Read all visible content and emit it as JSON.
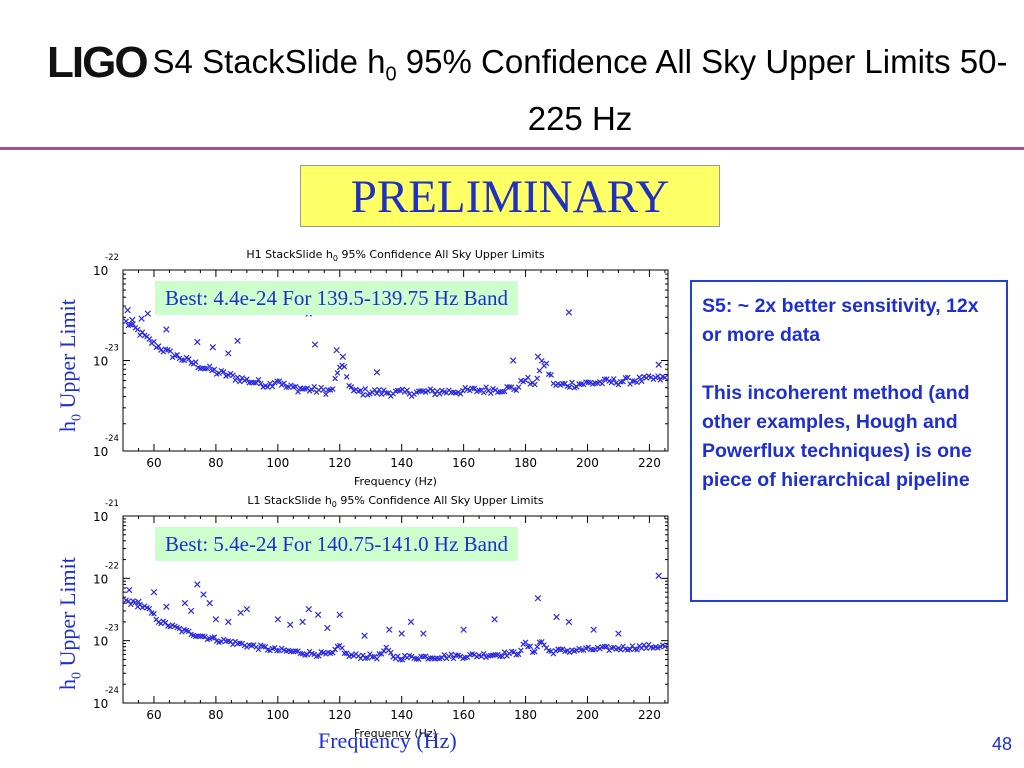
{
  "slide": {
    "logo": "LIGO",
    "title_main": "S4 StackSlide h",
    "title_sub": "0",
    "title_rest": " 95% Confidence All Sky Upper Limits 50-225 Hz",
    "preliminary": "PRELIMINARY",
    "freq_label": "Frequency (Hz)",
    "page_number": "48",
    "colors": {
      "accent": "#1e2fd0",
      "rule": "#a0509c",
      "prelim_bg": "#ffff66",
      "best_bg": "#ccffcc",
      "marker": "#2a2ae0"
    }
  },
  "ylabel": {
    "main": "h",
    "sub": "0",
    "rest": " Upper Limit"
  },
  "note": {
    "p1": "S5: ~ 2x better sensitivity, 12x or more data",
    "p2": "This incoherent method (and other examples, Hough and Powerflux techniques) is one piece of hierarchical pipeline"
  },
  "chart_data": [
    {
      "type": "scatter",
      "title_pre": "H1 StackSlide h",
      "title_sub": "0",
      "title_post": " 95% Confidence All Sky Upper Limits",
      "xlabel": "Frequency (Hz)",
      "ylabel": "h0 Upper Limit",
      "y_scale": "log",
      "xlim": [
        50,
        226
      ],
      "ylim_exp": [
        -24,
        -22
      ],
      "x_ticks": [
        60,
        80,
        100,
        120,
        140,
        160,
        180,
        200,
        220
      ],
      "y_ticks": [
        {
          "base": "10",
          "exp": "-24"
        },
        {
          "base": "10",
          "exp": "-23"
        },
        {
          "base": "10",
          "exp": "-22"
        }
      ],
      "annotation": "Best: 4.4e-24 For 139.5-139.75 Hz Band",
      "baseline": [
        [
          50,
          2.8e-23
        ],
        [
          55,
          2.1e-23
        ],
        [
          58,
          1.7e-23
        ],
        [
          64,
          1.25e-23
        ],
        [
          72,
          9.5e-24
        ],
        [
          80,
          7.5e-24
        ],
        [
          90,
          6e-24
        ],
        [
          100,
          5.2e-24
        ],
        [
          110,
          4.8e-24
        ],
        [
          120,
          4.5e-24
        ],
        [
          130,
          4.5e-24
        ],
        [
          140,
          4.4e-24
        ],
        [
          150,
          4.5e-24
        ],
        [
          160,
          4.6e-24
        ],
        [
          170,
          4.8e-24
        ],
        [
          180,
          5e-24
        ],
        [
          190,
          5.3e-24
        ],
        [
          200,
          5.6e-24
        ],
        [
          210,
          5.9e-24
        ],
        [
          220,
          6.2e-24
        ],
        [
          226,
          6.4e-24
        ]
      ],
      "bumps": [
        [
          100,
          1.2
        ],
        [
          120,
          1.8
        ],
        [
          122,
          1.4
        ],
        [
          180,
          1.3
        ],
        [
          185,
          1.6
        ],
        [
          187,
          1.5
        ]
      ],
      "outliers": [
        [
          51.5,
          3.6e-23
        ],
        [
          53,
          2.8e-23
        ],
        [
          56,
          2.9e-23
        ],
        [
          58,
          3.3e-23
        ],
        [
          64,
          2.2e-23
        ],
        [
          74,
          1.6e-23
        ],
        [
          79,
          1.4e-23
        ],
        [
          84,
          1.2e-23
        ],
        [
          87,
          1.65e-23
        ],
        [
          110,
          3.3e-23
        ],
        [
          112,
          1.5e-23
        ],
        [
          119,
          1.3e-23
        ],
        [
          121,
          1.1e-23
        ],
        [
          132,
          7.4e-24
        ],
        [
          176,
          1e-23
        ],
        [
          184,
          1.1e-23
        ],
        [
          194,
          3.4e-23
        ],
        [
          223,
          9e-24
        ]
      ]
    },
    {
      "type": "scatter",
      "title_pre": "L1 StackSlide h",
      "title_sub": "0",
      "title_post": " 95% Confidence All Sky Upper Limits",
      "xlabel": "Frequency (Hz)",
      "ylabel": "h0 Upper Limit",
      "y_scale": "log",
      "xlim": [
        50,
        226
      ],
      "ylim_exp": [
        -24,
        -21
      ],
      "x_ticks": [
        60,
        80,
        100,
        120,
        140,
        160,
        180,
        200,
        220
      ],
      "y_ticks": [
        {
          "base": "10",
          "exp": "-24"
        },
        {
          "base": "10",
          "exp": "-23"
        },
        {
          "base": "10",
          "exp": "-22"
        },
        {
          "base": "10",
          "exp": "-21"
        }
      ],
      "annotation": "Best: 5.4e-24 For 140.75-141.0 Hz Band",
      "baseline": [
        [
          50,
          4.5e-23
        ],
        [
          55,
          3.8e-23
        ],
        [
          58,
          3.2e-23
        ],
        [
          62,
          2e-23
        ],
        [
          70,
          1.4e-23
        ],
        [
          80,
          1.05e-23
        ],
        [
          90,
          8.5e-24
        ],
        [
          100,
          7e-24
        ],
        [
          110,
          6.3e-24
        ],
        [
          120,
          5.8e-24
        ],
        [
          130,
          5.6e-24
        ],
        [
          140,
          5.4e-24
        ],
        [
          150,
          5.5e-24
        ],
        [
          160,
          5.7e-24
        ],
        [
          170,
          6e-24
        ],
        [
          180,
          6.4e-24
        ],
        [
          190,
          6.8e-24
        ],
        [
          200,
          7.2e-24
        ],
        [
          210,
          7.6e-24
        ],
        [
          220,
          8e-24
        ],
        [
          226,
          8.2e-24
        ]
      ],
      "bumps": [
        [
          120,
          1.4
        ],
        [
          135,
          1.3
        ],
        [
          180,
          1.4
        ],
        [
          185,
          1.5
        ]
      ],
      "outliers": [
        [
          52,
          6.5e-23
        ],
        [
          55,
          4.2e-23
        ],
        [
          60,
          6e-23
        ],
        [
          64,
          3.5e-23
        ],
        [
          70,
          4e-23
        ],
        [
          72,
          3e-23
        ],
        [
          74,
          8e-23
        ],
        [
          76,
          5.5e-23
        ],
        [
          78,
          4e-23
        ],
        [
          80,
          2.2e-23
        ],
        [
          84,
          2e-23
        ],
        [
          88,
          2.8e-23
        ],
        [
          90,
          3.2e-23
        ],
        [
          100,
          2.2e-23
        ],
        [
          104,
          1.8e-23
        ],
        [
          108,
          2e-23
        ],
        [
          110,
          3.2e-23
        ],
        [
          113,
          2.6e-23
        ],
        [
          116,
          1.6e-23
        ],
        [
          120,
          2.6e-23
        ],
        [
          128,
          1.2e-23
        ],
        [
          136,
          1.5e-23
        ],
        [
          140,
          1.3e-23
        ],
        [
          143,
          2e-23
        ],
        [
          147,
          1.3e-23
        ],
        [
          160,
          1.5e-23
        ],
        [
          170,
          2.2e-23
        ],
        [
          184,
          4.8e-23
        ],
        [
          190,
          2.4e-23
        ],
        [
          194,
          2e-23
        ],
        [
          202,
          1.5e-23
        ],
        [
          210,
          1.3e-23
        ],
        [
          223,
          1.1e-22
        ]
      ]
    }
  ]
}
